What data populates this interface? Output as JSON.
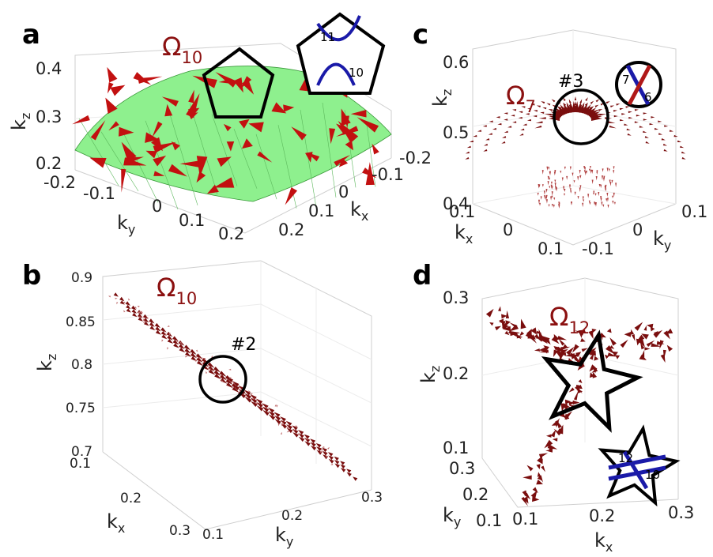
{
  "panels": {
    "a": {
      "label": "a",
      "omega": {
        "symbol": "Ω",
        "sub": "10"
      },
      "z_ticks": [
        "0.4",
        "0.3",
        "0.2"
      ],
      "y_ticks": [
        "-0.2",
        "-0.1",
        "0",
        "0.1",
        "0.2"
      ],
      "x_ticks": [
        "-0.2",
        "-0.1",
        "0",
        "0.1",
        "0.2"
      ],
      "axis_x": {
        "main": "k",
        "sub": "x"
      },
      "axis_y": {
        "main": "k",
        "sub": "y"
      },
      "axis_z": {
        "main": "k",
        "sub": "z"
      },
      "inset": {
        "shape": "pentagon",
        "band_top": "11",
        "band_bottom": "10"
      },
      "colors": {
        "surface": "#8ef08e",
        "arrows": "#c21010"
      }
    },
    "b": {
      "label": "b",
      "omega": {
        "symbol": "Ω",
        "sub": "10"
      },
      "z_ticks": [
        "0.9",
        "0.85",
        "0.8",
        "0.75",
        "0.7"
      ],
      "x_ticks": [
        "0.1",
        "0.2",
        "0.3"
      ],
      "y_ticks": [
        "0.1",
        "0.2",
        "0.3"
      ],
      "axis_x": {
        "main": "k",
        "sub": "x"
      },
      "axis_y": {
        "main": "k",
        "sub": "y"
      },
      "axis_z": {
        "main": "k",
        "sub": "z"
      },
      "marker": "#2",
      "colors": {
        "arrows": "#7a0e0e"
      }
    },
    "c": {
      "label": "c",
      "omega": {
        "symbol": "Ω",
        "sub": "7"
      },
      "z_ticks": [
        "0.6",
        "0.5",
        "0.4"
      ],
      "x_ticks": [
        "0.1",
        "0",
        "0.1"
      ],
      "y_ticks": [
        "0.1",
        "0",
        "-0.1"
      ],
      "axis_x": {
        "main": "k",
        "sub": "x"
      },
      "axis_y": {
        "main": "k",
        "sub": "y"
      },
      "axis_z": {
        "main": "k",
        "sub": "z"
      },
      "marker": "#3",
      "inset": {
        "shape": "circle",
        "band_left": "7",
        "band_right": "6"
      },
      "colors": {
        "arrows": "#7a0e0e",
        "band_blue": "#1a1aa8",
        "band_red": "#b01818"
      }
    },
    "d": {
      "label": "d",
      "omega": {
        "symbol": "Ω",
        "sub": "12"
      },
      "z_ticks": [
        "0.3",
        "0.2",
        "0.1"
      ],
      "y_ticks": [
        "0.3",
        "0.2",
        "0.1"
      ],
      "x_ticks": [
        "0.1",
        "0.2",
        "0.3"
      ],
      "axis_x": {
        "main": "k",
        "sub": "x"
      },
      "axis_y": {
        "main": "k",
        "sub": "y"
      },
      "axis_z": {
        "main": "k",
        "sub": "z"
      },
      "inset": {
        "shape": "star",
        "band_top": "12",
        "band_bottom": "10"
      },
      "colors": {
        "arrows": "#7a0e0e",
        "band_blue": "#1a1aa8"
      }
    }
  }
}
